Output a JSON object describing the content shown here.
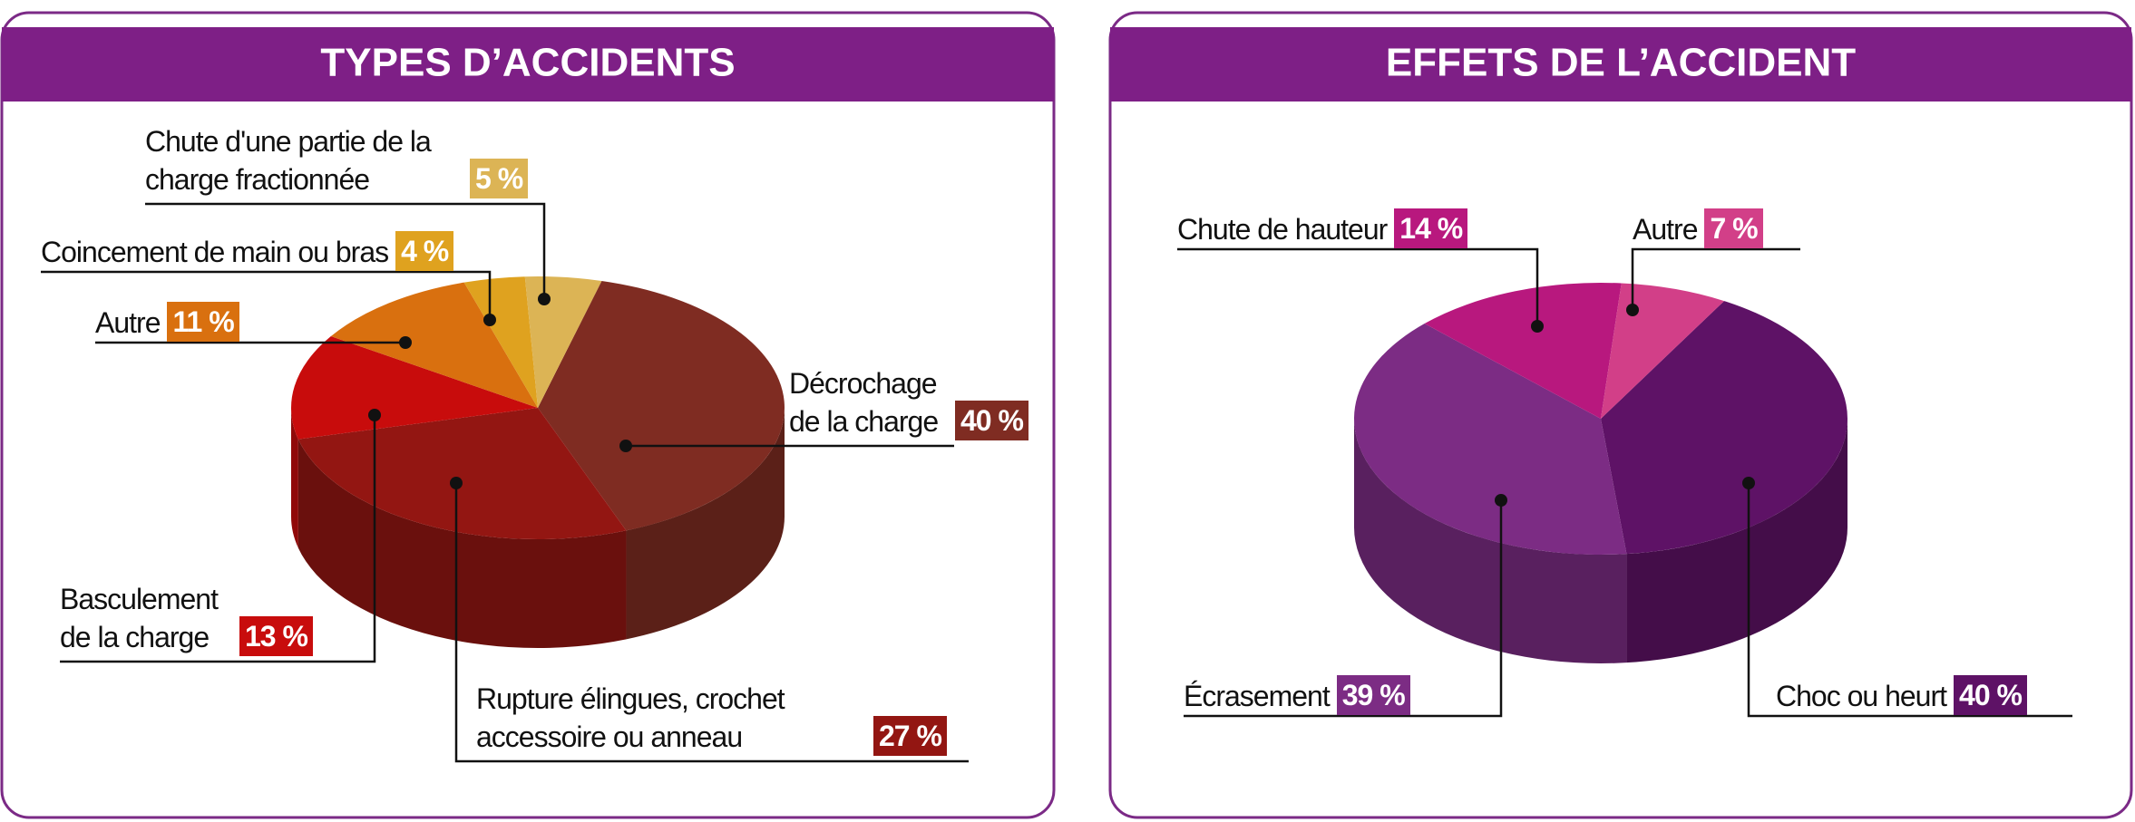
{
  "chart_data": [
    {
      "type": "pie",
      "title": "TYPES D’ACCIDENTS",
      "categories": [
        "Décrochage de la charge",
        "Rupture élingues, crochet accessoire ou anneau",
        "Basculement de la charge",
        "Autre",
        "Coincement de main ou bras",
        "Chute d'une partie de la charge fractionnée"
      ],
      "values": [
        40,
        27,
        13,
        11,
        4,
        5
      ],
      "value_labels": [
        "40 %",
        "27 %",
        "13 %",
        "11 %",
        "4 %",
        "5 %"
      ],
      "colors": [
        "#7f2c22",
        "#931612",
        "#c80c0c",
        "#d9700f",
        "#dfa21f",
        "#dcb455"
      ]
    },
    {
      "type": "pie",
      "title": "EFFETS DE L’ACCIDENT",
      "categories": [
        "Choc ou heurt",
        "Écrasement",
        "Chute de hauteur",
        "Autre"
      ],
      "values": [
        40,
        39,
        14,
        7
      ],
      "value_labels": [
        "40 %",
        "39 %",
        "14 %",
        "7 %"
      ],
      "colors": [
        "#5e1266",
        "#7c2c84",
        "#b8187e",
        "#d23f88"
      ]
    }
  ]
}
